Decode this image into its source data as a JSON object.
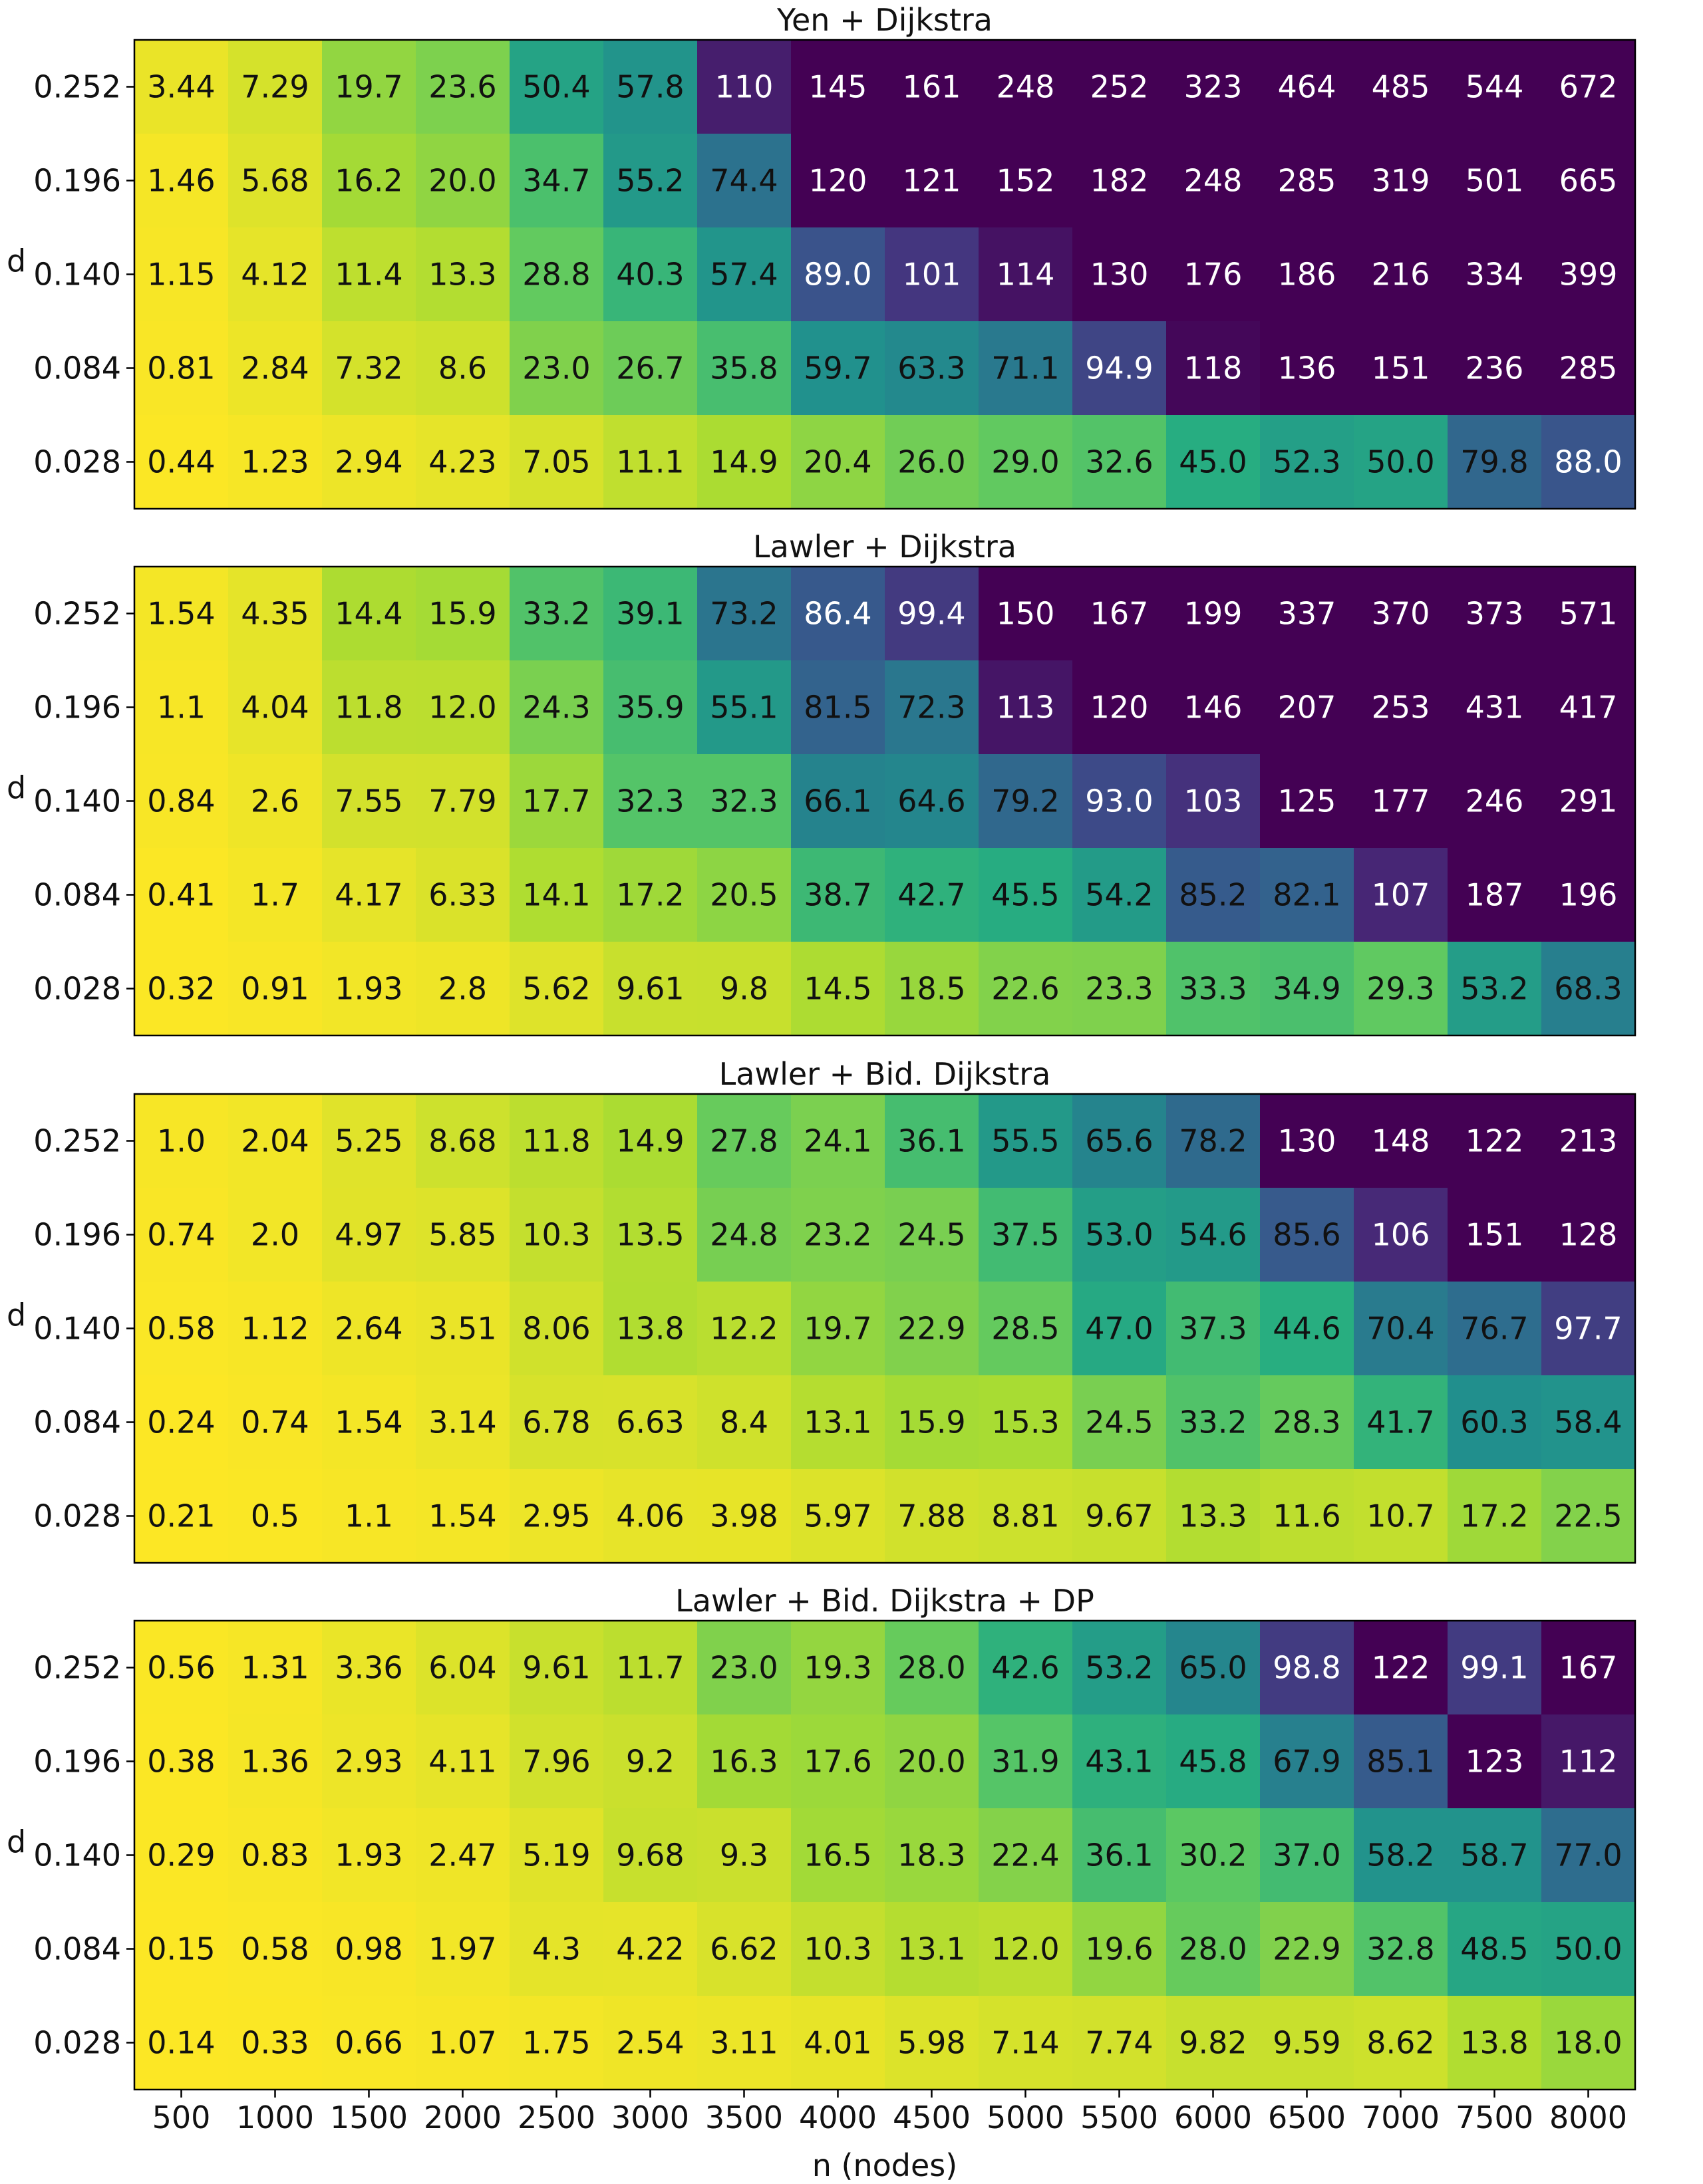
{
  "chart_data": [
    {
      "type": "heatmap",
      "title": "Yen + Dijkstra",
      "ylabel": "d",
      "x": [
        "500",
        "1000",
        "1500",
        "2000",
        "2500",
        "3000",
        "3500",
        "4000",
        "4500",
        "5000",
        "5500",
        "6000",
        "6500",
        "7000",
        "7500",
        "8000"
      ],
      "y": [
        "0.252",
        "0.196",
        "0.140",
        "0.084",
        "0.028"
      ],
      "values": [
        [
          "3.44",
          "7.29",
          "19.7",
          "23.6",
          "50.4",
          "57.8",
          "110",
          "145",
          "161",
          "248",
          "252",
          "323",
          "464",
          "485",
          "544",
          "672"
        ],
        [
          "1.46",
          "5.68",
          "16.2",
          "20.0",
          "34.7",
          "55.2",
          "74.4",
          "120",
          "121",
          "152",
          "182",
          "248",
          "285",
          "319",
          "501",
          "665"
        ],
        [
          "1.15",
          "4.12",
          "11.4",
          "13.3",
          "28.8",
          "40.3",
          "57.4",
          "89.0",
          "101",
          "114",
          "130",
          "176",
          "186",
          "216",
          "334",
          "399"
        ],
        [
          "0.81",
          "2.84",
          "7.32",
          "8.6",
          "23.0",
          "26.7",
          "35.8",
          "59.7",
          "63.3",
          "71.1",
          "94.9",
          "118",
          "136",
          "151",
          "236",
          "285"
        ],
        [
          "0.44",
          "1.23",
          "2.94",
          "4.23",
          "7.05",
          "11.1",
          "14.9",
          "20.4",
          "26.0",
          "29.0",
          "32.6",
          "45.0",
          "52.3",
          "50.0",
          "79.8",
          "88.0"
        ]
      ],
      "color_range": [
        0,
        120
      ]
    },
    {
      "type": "heatmap",
      "title": "Lawler + Dijkstra",
      "ylabel": "d",
      "x": [
        "500",
        "1000",
        "1500",
        "2000",
        "2500",
        "3000",
        "3500",
        "4000",
        "4500",
        "5000",
        "5500",
        "6000",
        "6500",
        "7000",
        "7500",
        "8000"
      ],
      "y": [
        "0.252",
        "0.196",
        "0.140",
        "0.084",
        "0.028"
      ],
      "values": [
        [
          "1.54",
          "4.35",
          "14.4",
          "15.9",
          "33.2",
          "39.1",
          "73.2",
          "86.4",
          "99.4",
          "150",
          "167",
          "199",
          "337",
          "370",
          "373",
          "571"
        ],
        [
          "1.1",
          "4.04",
          "11.8",
          "12.0",
          "24.3",
          "35.9",
          "55.1",
          "81.5",
          "72.3",
          "113",
          "120",
          "146",
          "207",
          "253",
          "431",
          "417"
        ],
        [
          "0.84",
          "2.6",
          "7.55",
          "7.79",
          "17.7",
          "32.3",
          "32.3",
          "66.1",
          "64.6",
          "79.2",
          "93.0",
          "103",
          "125",
          "177",
          "246",
          "291"
        ],
        [
          "0.41",
          "1.7",
          "4.17",
          "6.33",
          "14.1",
          "17.2",
          "20.5",
          "38.7",
          "42.7",
          "45.5",
          "54.2",
          "85.2",
          "82.1",
          "107",
          "187",
          "196"
        ],
        [
          "0.32",
          "0.91",
          "1.93",
          "2.8",
          "5.62",
          "9.61",
          "9.8",
          "14.5",
          "18.5",
          "22.6",
          "23.3",
          "33.3",
          "34.9",
          "29.3",
          "53.2",
          "68.3"
        ]
      ],
      "color_range": [
        0,
        120
      ]
    },
    {
      "type": "heatmap",
      "title": "Lawler + Bid. Dijkstra",
      "ylabel": "d",
      "x": [
        "500",
        "1000",
        "1500",
        "2000",
        "2500",
        "3000",
        "3500",
        "4000",
        "4500",
        "5000",
        "5500",
        "6000",
        "6500",
        "7000",
        "7500",
        "8000"
      ],
      "y": [
        "0.252",
        "0.196",
        "0.140",
        "0.084",
        "0.028"
      ],
      "values": [
        [
          "1.0",
          "2.04",
          "5.25",
          "8.68",
          "11.8",
          "14.9",
          "27.8",
          "24.1",
          "36.1",
          "55.5",
          "65.6",
          "78.2",
          "130",
          "148",
          "122",
          "213"
        ],
        [
          "0.74",
          "2.0",
          "4.97",
          "5.85",
          "10.3",
          "13.5",
          "24.8",
          "23.2",
          "24.5",
          "37.5",
          "53.0",
          "54.6",
          "85.6",
          "106",
          "151",
          "128"
        ],
        [
          "0.58",
          "1.12",
          "2.64",
          "3.51",
          "8.06",
          "13.8",
          "12.2",
          "19.7",
          "22.9",
          "28.5",
          "47.0",
          "37.3",
          "44.6",
          "70.4",
          "76.7",
          "97.7"
        ],
        [
          "0.24",
          "0.74",
          "1.54",
          "3.14",
          "6.78",
          "6.63",
          "8.4",
          "13.1",
          "15.9",
          "15.3",
          "24.5",
          "33.2",
          "28.3",
          "41.7",
          "60.3",
          "58.4"
        ],
        [
          "0.21",
          "0.5",
          "1.1",
          "1.54",
          "2.95",
          "4.06",
          "3.98",
          "5.97",
          "7.88",
          "8.81",
          "9.67",
          "13.3",
          "11.6",
          "10.7",
          "17.2",
          "22.5"
        ]
      ],
      "color_range": [
        0,
        120
      ]
    },
    {
      "type": "heatmap",
      "title": "Lawler + Bid. Dijkstra + DP",
      "xlabel": "n (nodes)",
      "ylabel": "d",
      "x": [
        "500",
        "1000",
        "1500",
        "2000",
        "2500",
        "3000",
        "3500",
        "4000",
        "4500",
        "5000",
        "5500",
        "6000",
        "6500",
        "7000",
        "7500",
        "8000"
      ],
      "y": [
        "0.252",
        "0.196",
        "0.140",
        "0.084",
        "0.028"
      ],
      "values": [
        [
          "0.56",
          "1.31",
          "3.36",
          "6.04",
          "9.61",
          "11.7",
          "23.0",
          "19.3",
          "28.0",
          "42.6",
          "53.2",
          "65.0",
          "98.8",
          "122",
          "99.1",
          "167"
        ],
        [
          "0.38",
          "1.36",
          "2.93",
          "4.11",
          "7.96",
          "9.2",
          "16.3",
          "17.6",
          "20.0",
          "31.9",
          "43.1",
          "45.8",
          "67.9",
          "85.1",
          "123",
          "112"
        ],
        [
          "0.29",
          "0.83",
          "1.93",
          "2.47",
          "5.19",
          "9.68",
          "9.3",
          "16.5",
          "18.3",
          "22.4",
          "36.1",
          "30.2",
          "37.0",
          "58.2",
          "58.7",
          "77.0"
        ],
        [
          "0.15",
          "0.58",
          "0.98",
          "1.97",
          "4.3",
          "4.22",
          "6.62",
          "10.3",
          "13.1",
          "12.0",
          "19.6",
          "28.0",
          "22.9",
          "32.8",
          "48.5",
          "50.0"
        ],
        [
          "0.14",
          "0.33",
          "0.66",
          "1.07",
          "1.75",
          "2.54",
          "3.11",
          "4.01",
          "5.98",
          "7.14",
          "7.74",
          "9.82",
          "9.59",
          "8.62",
          "13.8",
          "18.0"
        ]
      ],
      "color_range": [
        0,
        120
      ]
    }
  ]
}
